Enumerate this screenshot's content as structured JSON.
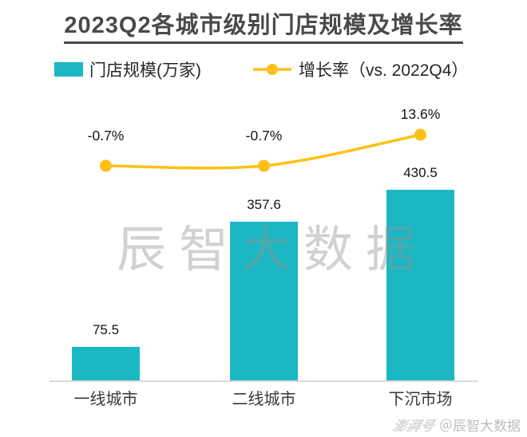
{
  "title": "2023Q2各城市级别门店规模及增长率",
  "legend": {
    "bar_label": "门店规模(万家)",
    "line_label": "增长率（vs. 2022Q4）"
  },
  "colors": {
    "bar": "#1BB8C4",
    "line": "#FFC013",
    "title": "#4A4A4A",
    "axis": "#D9D9D9"
  },
  "chart_data": {
    "type": "bar",
    "subtype": "bar+line-combo",
    "title": "2023Q2各城市级别门店规模及增长率",
    "categories": [
      "一线城市",
      "二线城市",
      "下沉市场"
    ],
    "series": [
      {
        "name": "门店规模(万家)",
        "type": "bar",
        "values": [
          75.5,
          357.6,
          430.5
        ],
        "labels": [
          "75.5",
          "357.6",
          "430.5"
        ],
        "color": "#1BB8C4"
      },
      {
        "name": "增长率（vs. 2022Q4）",
        "type": "line",
        "values": [
          -0.7,
          -0.7,
          13.6
        ],
        "labels": [
          "-0.7%",
          "-0.7%",
          "13.6%"
        ],
        "color": "#FFC013"
      }
    ],
    "grid": false,
    "legend_position": "top",
    "value_axis_visible": false,
    "bar_axis_range": [
      0,
      430.5
    ],
    "line_axis_unit": "percent"
  },
  "watermarks": {
    "center": "辰智大数据",
    "footer_logo": "澎湃号",
    "footer_text": "＠辰智大数据"
  }
}
